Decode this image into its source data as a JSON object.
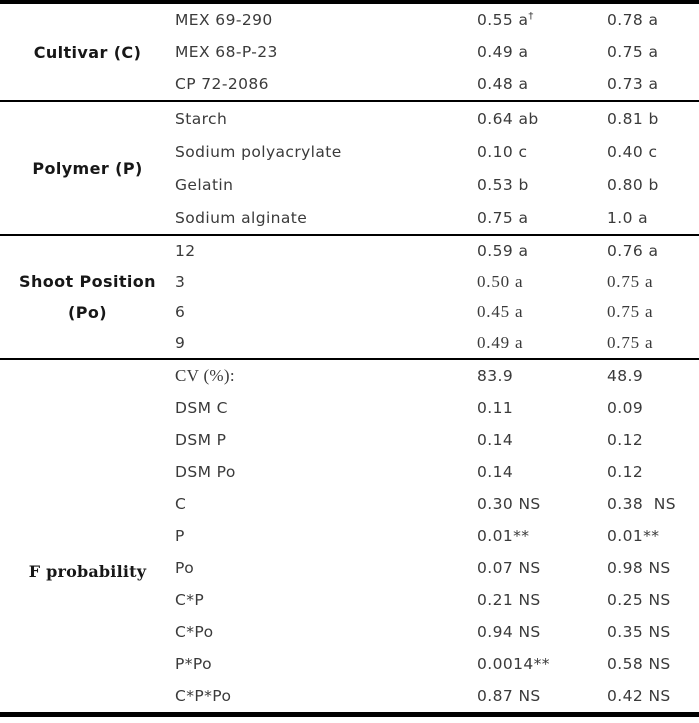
{
  "table": {
    "description_note": "",
    "sections": [
      {
        "header": [
          "Cultivar (C)"
        ],
        "rows": [
          {
            "item": "MEX 69-290",
            "v1": "0.55 a",
            "v1sup": "†",
            "v2": "0.78 a"
          },
          {
            "item": "MEX 68-P-23",
            "v1": "0.49 a",
            "v2": "0.75 a"
          },
          {
            "item": "CP 72-2086",
            "v1": "0.48 a",
            "v2": "0.73 a"
          }
        ]
      },
      {
        "header": [
          "Polymer  (P)"
        ],
        "rows": [
          {
            "item": "Starch",
            "v1": "0.64 ab",
            "v2": "0.81 b"
          },
          {
            "item": "Sodium polyacrylate",
            "v1": "0.10 c",
            "v2": "0.40 c"
          },
          {
            "item": "Gelatin",
            "v1": "0.53 b",
            "v2": "0.80 b"
          },
          {
            "item": "Sodium alginate",
            "v1": "0.75 a",
            "v2": "1.0 a"
          }
        ]
      },
      {
        "header": [
          "Shoot Position",
          "(Po)"
        ],
        "rows": [
          {
            "item": "12",
            "v1": "0.59 a",
            "v2": "0.76 a"
          },
          {
            "item": "3",
            "v1": "0.50 a",
            "v2": "0.75 a",
            "vserif": true
          },
          {
            "item": "6",
            "v1": "0.45 a",
            "v2": "0.75 a",
            "vserif": true
          },
          {
            "item": "9",
            "v1": "0.49 a",
            "v2": "0.75 a",
            "vserif": true
          }
        ]
      },
      {
        "header": [
          "F probability"
        ],
        "rows": [
          {
            "item": "CV (%):",
            "v1": "83.9",
            "v2": "48.9",
            "iserif": true
          },
          {
            "item": "DSM C",
            "v1": "0.11",
            "v2": "0.09"
          },
          {
            "item": "DSM P",
            "v1": "0.14",
            "v2": "0.12"
          },
          {
            "item": "DSM Po",
            "v1": "0.14",
            "v2": "0.12"
          },
          {
            "item": "C",
            "v1": "0.30 NS",
            "v2": "0.38  NS"
          },
          {
            "item": "P",
            "v1": "0.01**",
            "v2": "0.01**"
          },
          {
            "item": "Po",
            "v1": "0.07 NS",
            "v2": "0.98 NS"
          },
          {
            "item": "C*P",
            "v1": "0.21 NS",
            "v2": "0.25 NS"
          },
          {
            "item": "C*Po",
            "v1": "0.94 NS",
            "v2": "0.35 NS"
          },
          {
            "item": "P*Po",
            "v1": "0.0014**",
            "v2": "0.58 NS"
          },
          {
            "item": "C*P*Po",
            "v1": "0.87 NS",
            "v2": "0.42 NS"
          }
        ]
      }
    ]
  }
}
